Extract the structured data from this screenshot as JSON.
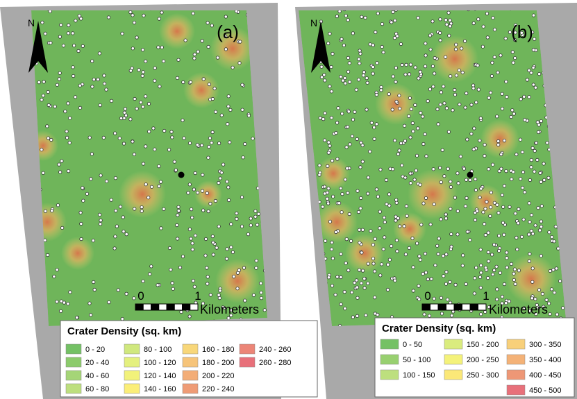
{
  "panels": [
    {
      "label": "(a)",
      "north": "N",
      "scale": {
        "ticks": [
          "0",
          "1"
        ],
        "unit": "Kilometers"
      },
      "legend": {
        "title": "Crater Density (sq. km)",
        "entries": [
          {
            "label": "0 - 20",
            "color": "#74c165"
          },
          {
            "label": "20 - 40",
            "color": "#8ccb6c"
          },
          {
            "label": "40 - 60",
            "color": "#a5d577"
          },
          {
            "label": "60 - 80",
            "color": "#bddf7e"
          },
          {
            "label": "80 - 100",
            "color": "#d0e87e"
          },
          {
            "label": "100 - 120",
            "color": "#e4f07e"
          },
          {
            "label": "120 - 140",
            "color": "#f2f27a"
          },
          {
            "label": "140 - 160",
            "color": "#fbee78"
          },
          {
            "label": "160 - 180",
            "color": "#f8d77a"
          },
          {
            "label": "180 - 200",
            "color": "#f6c47a"
          },
          {
            "label": "200 - 220",
            "color": "#f3ad77"
          },
          {
            "label": "220 - 240",
            "color": "#ef9c76"
          },
          {
            "label": "240 - 260",
            "color": "#ec8577"
          },
          {
            "label": "260 - 280",
            "color": "#e8707a"
          }
        ]
      }
    },
    {
      "label": "(b)",
      "north": "N",
      "scale": {
        "ticks": [
          "0",
          "1"
        ],
        "unit": "Kilometers"
      },
      "legend": {
        "title": "Crater Density (sq. km)",
        "entries": [
          {
            "label": "0 - 50",
            "color": "#74c165"
          },
          {
            "label": "50 - 100",
            "color": "#98d070"
          },
          {
            "label": "100 - 150",
            "color": "#bddf7e"
          },
          {
            "label": "150 - 200",
            "color": "#daec7e"
          },
          {
            "label": "200 - 250",
            "color": "#f4f27a"
          },
          {
            "label": "250 - 300",
            "color": "#fbe878"
          },
          {
            "label": "300 - 350",
            "color": "#f8d07a"
          },
          {
            "label": "350 - 400",
            "color": "#f4b277"
          },
          {
            "label": "400 - 450",
            "color": "#ee9776"
          },
          {
            "label": "450 - 500",
            "color": "#e8707a"
          }
        ]
      }
    }
  ]
}
